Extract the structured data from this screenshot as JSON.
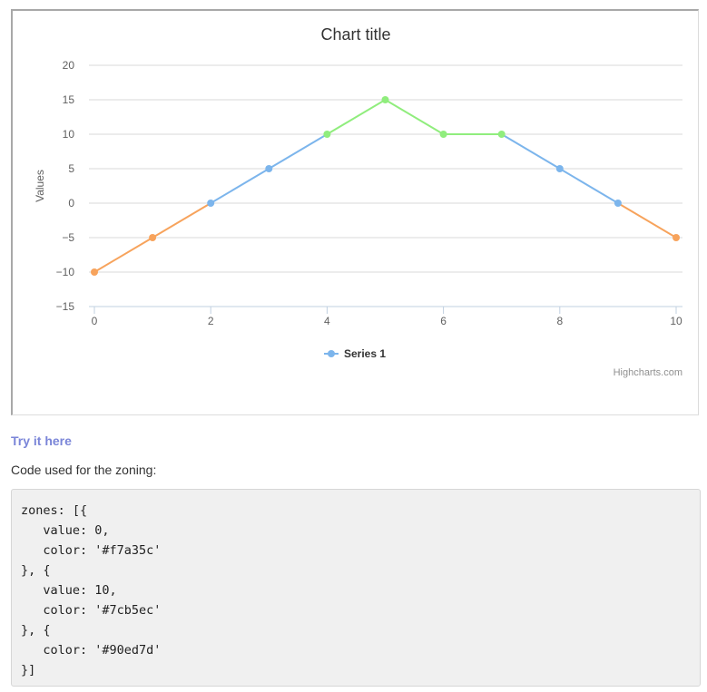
{
  "chart_data": {
    "type": "line",
    "title": "Chart title",
    "ylabel": "Values",
    "xlabel": "",
    "x": [
      0,
      1,
      2,
      3,
      4,
      5,
      6,
      7,
      8,
      9,
      10
    ],
    "xticks": [
      "0",
      "2",
      "4",
      "6",
      "8",
      "10"
    ],
    "xtick_values": [
      0,
      2,
      4,
      6,
      8,
      10
    ],
    "yticks": [
      "20",
      "15",
      "10",
      "5",
      "0",
      "−5",
      "−10",
      "−15"
    ],
    "ytick_values": [
      20,
      15,
      10,
      5,
      0,
      -5,
      -10,
      -15
    ],
    "xlim": [
      0,
      10
    ],
    "ylim": [
      -15,
      20
    ],
    "grid": "horizontal",
    "legend": "bottom-center",
    "series": [
      {
        "name": "Series 1",
        "values": [
          -10,
          -5,
          0,
          5,
          10,
          15,
          10,
          10,
          5,
          0,
          -5
        ],
        "color": "#7cb5ec"
      }
    ],
    "zones": [
      {
        "value": 0,
        "color": "#f7a35c"
      },
      {
        "value": 10,
        "color": "#7cb5ec"
      },
      {
        "color": "#90ed7d"
      }
    ],
    "credits": "Highcharts.com"
  },
  "link": {
    "label": "Try it here",
    "color": "#7a85d8"
  },
  "caption": "Code used for the zoning:",
  "code_lines": [
    "zones: [{",
    "   value: 0,",
    "   color: '#f7a35c'",
    "}, {",
    "   value: 10,",
    "   color: '#7cb5ec'",
    "}, {",
    "   color: '#90ed7d'",
    "}]"
  ]
}
